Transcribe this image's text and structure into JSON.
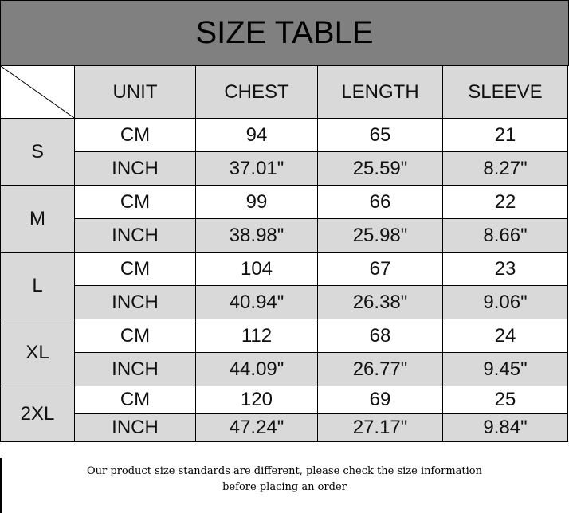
{
  "title": "SIZE TABLE",
  "headers": [
    "UNIT",
    "CHEST",
    "LENGTH",
    "SLEEVE"
  ],
  "sizes": [
    {
      "size": "S",
      "rows": [
        {
          "unit": "CM",
          "chest": "94",
          "length": "65",
          "sleeve": "21"
        },
        {
          "unit": "INCH",
          "chest": "37.01\"",
          "length": "25.59\"",
          "sleeve": "8.27\""
        }
      ]
    },
    {
      "size": "M",
      "rows": [
        {
          "unit": "CM",
          "chest": "99",
          "length": "66",
          "sleeve": "22"
        },
        {
          "unit": "INCH",
          "chest": "38.98\"",
          "length": "25.98\"",
          "sleeve": "8.66\""
        }
      ]
    },
    {
      "size": "L",
      "rows": [
        {
          "unit": "CM",
          "chest": "104",
          "length": "67",
          "sleeve": "23"
        },
        {
          "unit": "INCH",
          "chest": "40.94\"",
          "length": "26.38\"",
          "sleeve": "9.06\""
        }
      ]
    },
    {
      "size": "XL",
      "rows": [
        {
          "unit": "CM",
          "chest": "112",
          "length": "68",
          "sleeve": "24"
        },
        {
          "unit": "INCH",
          "chest": "44.09\"",
          "length": "26.77\"",
          "sleeve": "9.45\""
        }
      ]
    },
    {
      "size": "2XL",
      "rows": [
        {
          "unit": "CM",
          "chest": "120",
          "length": "69",
          "sleeve": "25"
        },
        {
          "unit": "INCH",
          "chest": "47.24\"",
          "length": "27.17\"",
          "sleeve": "9.84\""
        }
      ]
    }
  ],
  "footer": {
    "line1": "Our product size standards are different, please check the size information",
    "line2": "before placing an order"
  },
  "colors": {
    "title_bg": "#808080",
    "gray_cell": "#d9d9d9"
  }
}
